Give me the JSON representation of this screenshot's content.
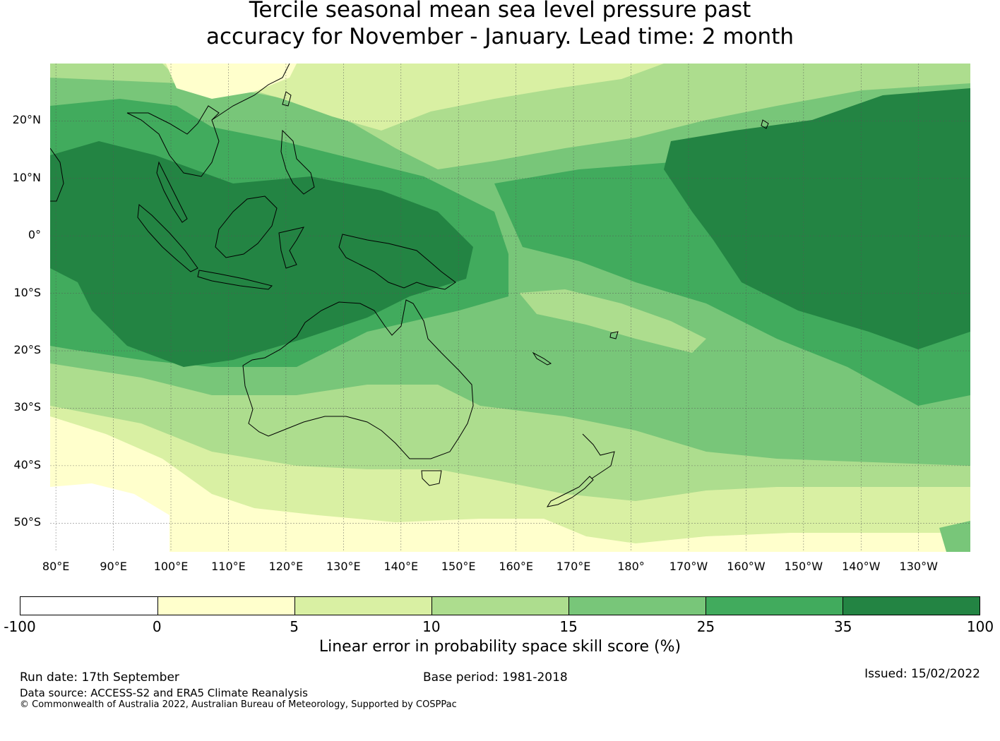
{
  "title_line1": "Tercile seasonal mean sea level pressure past",
  "title_line2": "accuracy for November - January. Lead time: 2 month",
  "map": {
    "lon_range": [
      79,
      239
    ],
    "lat_range": [
      -55,
      30
    ],
    "lat_labels": [
      {
        "lat": 20,
        "text": "20°N"
      },
      {
        "lat": 10,
        "text": "10°N"
      },
      {
        "lat": 0,
        "text": "0°"
      },
      {
        "lat": -10,
        "text": "10°S"
      },
      {
        "lat": -20,
        "text": "20°S"
      },
      {
        "lat": -30,
        "text": "30°S"
      },
      {
        "lat": -40,
        "text": "40°S"
      },
      {
        "lat": -50,
        "text": "50°S"
      }
    ],
    "lon_labels": [
      {
        "lon": 80,
        "text": "80°E"
      },
      {
        "lon": 90,
        "text": "90°E"
      },
      {
        "lon": 100,
        "text": "100°E"
      },
      {
        "lon": 110,
        "text": "110°E"
      },
      {
        "lon": 120,
        "text": "120°E"
      },
      {
        "lon": 130,
        "text": "130°E"
      },
      {
        "lon": 140,
        "text": "140°E"
      },
      {
        "lon": 150,
        "text": "150°E"
      },
      {
        "lon": 160,
        "text": "160°E"
      },
      {
        "lon": 170,
        "text": "170°E"
      },
      {
        "lon": 180,
        "text": "180°"
      },
      {
        "lon": 190,
        "text": "170°W"
      },
      {
        "lon": 200,
        "text": "160°W"
      },
      {
        "lon": 210,
        "text": "150°W"
      },
      {
        "lon": 220,
        "text": "140°W"
      },
      {
        "lon": 230,
        "text": "130°W"
      }
    ]
  },
  "colorbar": {
    "ticks": [
      "-100",
      "0",
      "5",
      "10",
      "15",
      "25",
      "35",
      "100"
    ],
    "colors": [
      "#ffffff",
      "#ffffcc",
      "#d9f0a3",
      "#addd8e",
      "#78c679",
      "#41ab5d",
      "#238443"
    ],
    "label": "Linear error in probability space skill score (%)"
  },
  "footer": {
    "run_date": "Run date: 17th September",
    "base_period": "Base period: 1981-2018",
    "issued": "Issued: 15/02/2022",
    "data_source": "Data source: ACCESS-S2 and ERA5 Climate Reanalysis",
    "copyright": "© Commonwealth of Australia 2022, Australian Bureau of Meteorology, Supported by COSPPac"
  }
}
